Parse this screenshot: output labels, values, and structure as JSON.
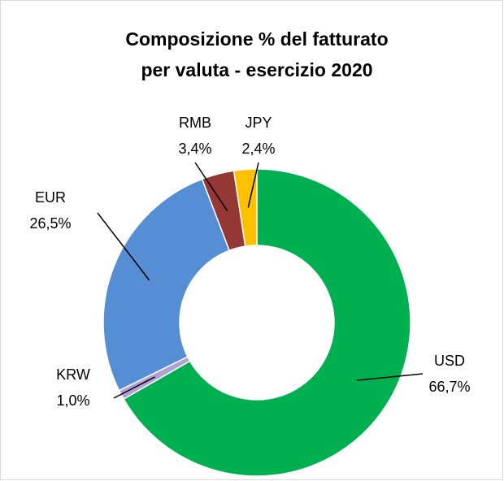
{
  "chart_data": {
    "type": "donut",
    "title": [
      "Composizione % del fatturato",
      "per valuta - esercizio 2020"
    ],
    "categories": [
      "USD",
      "KRW",
      "EUR",
      "RMB",
      "JPY"
    ],
    "values": [
      66.7,
      1.0,
      26.5,
      3.4,
      2.4
    ],
    "value_labels": [
      "66,7%",
      "1,0%",
      "26,5%",
      "3,4%",
      "2,4%"
    ],
    "colors": [
      "#00b050",
      "#b1a0d6",
      "#558ed5",
      "#953735",
      "#ffc000"
    ]
  }
}
